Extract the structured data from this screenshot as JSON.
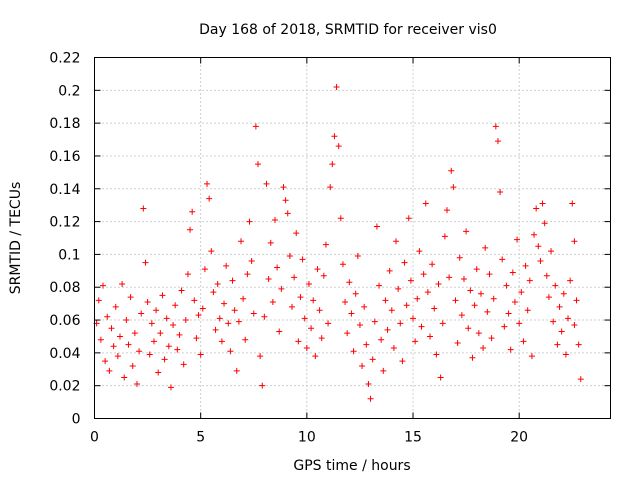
{
  "chart_data": {
    "type": "scatter",
    "title": "Day 168 of 2018, SRMTID for receiver vis0",
    "xlabel": "GPS time / hours",
    "ylabel": "SRMTID / TECUs",
    "xlim": [
      0,
      24.3
    ],
    "ylim": [
      0,
      0.22
    ],
    "x_ticks": [
      0,
      5,
      10,
      15,
      20
    ],
    "x_tick_labels": [
      "0",
      "5",
      "10",
      "15",
      "20"
    ],
    "y_ticks": [
      0,
      0.02,
      0.04,
      0.06,
      0.08,
      0.1,
      0.12,
      0.14,
      0.16,
      0.18,
      0.2,
      0.22
    ],
    "y_tick_labels": [
      "0",
      "0.02",
      "0.04",
      "0.06",
      "0.08",
      "0.1",
      "0.12",
      "0.14",
      "0.16",
      "0.18",
      "0.2",
      "0.22"
    ],
    "grid": true,
    "marker": "+",
    "color": "#ff0000",
    "series": [
      {
        "name": "vis0",
        "points": [
          [
            0.1,
            0.058
          ],
          [
            0.2,
            0.072
          ],
          [
            0.3,
            0.048
          ],
          [
            0.4,
            0.081
          ],
          [
            0.5,
            0.035
          ],
          [
            0.6,
            0.062
          ],
          [
            0.7,
            0.029
          ],
          [
            0.8,
            0.055
          ],
          [
            0.9,
            0.044
          ],
          [
            1.0,
            0.068
          ],
          [
            1.1,
            0.038
          ],
          [
            1.2,
            0.05
          ],
          [
            1.3,
            0.082
          ],
          [
            1.4,
            0.025
          ],
          [
            1.5,
            0.06
          ],
          [
            1.6,
            0.045
          ],
          [
            1.7,
            0.074
          ],
          [
            1.8,
            0.032
          ],
          [
            1.9,
            0.052
          ],
          [
            2.0,
            0.021
          ],
          [
            2.1,
            0.041
          ],
          [
            2.2,
            0.064
          ],
          [
            2.3,
            0.128
          ],
          [
            2.4,
            0.095
          ],
          [
            2.5,
            0.071
          ],
          [
            2.6,
            0.039
          ],
          [
            2.7,
            0.058
          ],
          [
            2.8,
            0.047
          ],
          [
            2.9,
            0.066
          ],
          [
            3.0,
            0.028
          ],
          [
            3.1,
            0.052
          ],
          [
            3.2,
            0.075
          ],
          [
            3.3,
            0.036
          ],
          [
            3.4,
            0.061
          ],
          [
            3.5,
            0.044
          ],
          [
            3.6,
            0.019
          ],
          [
            3.7,
            0.057
          ],
          [
            3.8,
            0.069
          ],
          [
            3.9,
            0.042
          ],
          [
            4.0,
            0.051
          ],
          [
            4.1,
            0.078
          ],
          [
            4.2,
            0.033
          ],
          [
            4.3,
            0.06
          ],
          [
            4.4,
            0.088
          ],
          [
            4.5,
            0.115
          ],
          [
            4.6,
            0.126
          ],
          [
            4.7,
            0.072
          ],
          [
            4.8,
            0.049
          ],
          [
            4.9,
            0.063
          ],
          [
            5.0,
            0.039
          ],
          [
            5.1,
            0.067
          ],
          [
            5.2,
            0.091
          ],
          [
            5.3,
            0.143
          ],
          [
            5.4,
            0.134
          ],
          [
            5.5,
            0.102
          ],
          [
            5.6,
            0.077
          ],
          [
            5.7,
            0.054
          ],
          [
            5.8,
            0.082
          ],
          [
            5.9,
            0.061
          ],
          [
            6.0,
            0.047
          ],
          [
            6.1,
            0.07
          ],
          [
            6.2,
            0.093
          ],
          [
            6.3,
            0.058
          ],
          [
            6.4,
            0.041
          ],
          [
            6.5,
            0.084
          ],
          [
            6.6,
            0.066
          ],
          [
            6.7,
            0.029
          ],
          [
            6.8,
            0.059
          ],
          [
            6.9,
            0.108
          ],
          [
            7.0,
            0.073
          ],
          [
            7.1,
            0.048
          ],
          [
            7.2,
            0.088
          ],
          [
            7.3,
            0.12
          ],
          [
            7.4,
            0.096
          ],
          [
            7.5,
            0.064
          ],
          [
            7.6,
            0.178
          ],
          [
            7.7,
            0.155
          ],
          [
            7.8,
            0.038
          ],
          [
            7.9,
            0.02
          ],
          [
            8.0,
            0.062
          ],
          [
            8.1,
            0.143
          ],
          [
            8.2,
            0.085
          ],
          [
            8.3,
            0.107
          ],
          [
            8.4,
            0.071
          ],
          [
            8.5,
            0.121
          ],
          [
            8.6,
            0.092
          ],
          [
            8.7,
            0.053
          ],
          [
            8.8,
            0.079
          ],
          [
            8.9,
            0.141
          ],
          [
            9.0,
            0.133
          ],
          [
            9.1,
            0.125
          ],
          [
            9.2,
            0.099
          ],
          [
            9.3,
            0.068
          ],
          [
            9.4,
            0.086
          ],
          [
            9.5,
            0.113
          ],
          [
            9.6,
            0.047
          ],
          [
            9.7,
            0.074
          ],
          [
            9.8,
            0.097
          ],
          [
            9.9,
            0.061
          ],
          [
            10.0,
            0.043
          ],
          [
            10.1,
            0.082
          ],
          [
            10.2,
            0.055
          ],
          [
            10.3,
            0.072
          ],
          [
            10.4,
            0.038
          ],
          [
            10.5,
            0.091
          ],
          [
            10.6,
            0.066
          ],
          [
            10.7,
            0.049
          ],
          [
            10.8,
            0.087
          ],
          [
            10.9,
            0.106
          ],
          [
            11.0,
            0.058
          ],
          [
            11.1,
            0.141
          ],
          [
            11.2,
            0.155
          ],
          [
            11.3,
            0.172
          ],
          [
            11.4,
            0.202
          ],
          [
            11.5,
            0.166
          ],
          [
            11.6,
            0.122
          ],
          [
            11.7,
            0.094
          ],
          [
            11.8,
            0.071
          ],
          [
            11.9,
            0.052
          ],
          [
            12.0,
            0.083
          ],
          [
            12.1,
            0.064
          ],
          [
            12.2,
            0.041
          ],
          [
            12.3,
            0.076
          ],
          [
            12.4,
            0.099
          ],
          [
            12.5,
            0.057
          ],
          [
            12.6,
            0.032
          ],
          [
            12.7,
            0.068
          ],
          [
            12.8,
            0.045
          ],
          [
            12.9,
            0.021
          ],
          [
            13.0,
            0.012
          ],
          [
            13.1,
            0.036
          ],
          [
            13.2,
            0.059
          ],
          [
            13.3,
            0.117
          ],
          [
            13.4,
            0.081
          ],
          [
            13.5,
            0.048
          ],
          [
            13.6,
            0.029
          ],
          [
            13.7,
            0.072
          ],
          [
            13.8,
            0.054
          ],
          [
            13.9,
            0.09
          ],
          [
            14.0,
            0.066
          ],
          [
            14.1,
            0.043
          ],
          [
            14.2,
            0.108
          ],
          [
            14.3,
            0.079
          ],
          [
            14.4,
            0.058
          ],
          [
            14.5,
            0.035
          ],
          [
            14.6,
            0.095
          ],
          [
            14.7,
            0.069
          ],
          [
            14.8,
            0.122
          ],
          [
            14.9,
            0.084
          ],
          [
            15.0,
            0.061
          ],
          [
            15.1,
            0.047
          ],
          [
            15.2,
            0.073
          ],
          [
            15.3,
            0.102
          ],
          [
            15.4,
            0.056
          ],
          [
            15.5,
            0.088
          ],
          [
            15.6,
            0.131
          ],
          [
            15.7,
            0.077
          ],
          [
            15.8,
            0.05
          ],
          [
            15.9,
            0.094
          ],
          [
            16.0,
            0.067
          ],
          [
            16.1,
            0.039
          ],
          [
            16.2,
            0.082
          ],
          [
            16.3,
            0.025
          ],
          [
            16.4,
            0.058
          ],
          [
            16.5,
            0.111
          ],
          [
            16.6,
            0.127
          ],
          [
            16.7,
            0.086
          ],
          [
            16.8,
            0.151
          ],
          [
            16.9,
            0.141
          ],
          [
            17.0,
            0.072
          ],
          [
            17.1,
            0.046
          ],
          [
            17.2,
            0.098
          ],
          [
            17.3,
            0.063
          ],
          [
            17.4,
            0.085
          ],
          [
            17.5,
            0.114
          ],
          [
            17.6,
            0.055
          ],
          [
            17.7,
            0.078
          ],
          [
            17.8,
            0.037
          ],
          [
            17.9,
            0.069
          ],
          [
            18.0,
            0.091
          ],
          [
            18.1,
            0.052
          ],
          [
            18.2,
            0.076
          ],
          [
            18.3,
            0.043
          ],
          [
            18.4,
            0.104
          ],
          [
            18.5,
            0.065
          ],
          [
            18.6,
            0.088
          ],
          [
            18.7,
            0.049
          ],
          [
            18.8,
            0.073
          ],
          [
            18.9,
            0.178
          ],
          [
            19.0,
            0.169
          ],
          [
            19.1,
            0.138
          ],
          [
            19.2,
            0.097
          ],
          [
            19.3,
            0.056
          ],
          [
            19.4,
            0.081
          ],
          [
            19.5,
            0.064
          ],
          [
            19.6,
            0.042
          ],
          [
            19.7,
            0.089
          ],
          [
            19.8,
            0.071
          ],
          [
            19.9,
            0.109
          ],
          [
            20.0,
            0.058
          ],
          [
            20.1,
            0.077
          ],
          [
            20.2,
            0.047
          ],
          [
            20.3,
            0.093
          ],
          [
            20.4,
            0.066
          ],
          [
            20.5,
            0.084
          ],
          [
            20.6,
            0.038
          ],
          [
            20.7,
            0.112
          ],
          [
            20.8,
            0.128
          ],
          [
            20.9,
            0.105
          ],
          [
            21.0,
            0.096
          ],
          [
            21.1,
            0.131
          ],
          [
            21.2,
            0.119
          ],
          [
            21.3,
            0.087
          ],
          [
            21.4,
            0.074
          ],
          [
            21.5,
            0.102
          ],
          [
            21.6,
            0.059
          ],
          [
            21.7,
            0.081
          ],
          [
            21.8,
            0.045
          ],
          [
            21.9,
            0.068
          ],
          [
            22.0,
            0.053
          ],
          [
            22.1,
            0.076
          ],
          [
            22.2,
            0.039
          ],
          [
            22.3,
            0.061
          ],
          [
            22.4,
            0.084
          ],
          [
            22.5,
            0.131
          ],
          [
            22.6,
            0.108
          ],
          [
            22.7,
            0.072
          ],
          [
            22.8,
            0.045
          ],
          [
            22.9,
            0.024
          ],
          [
            22.6,
            0.057
          ]
        ]
      }
    ]
  }
}
